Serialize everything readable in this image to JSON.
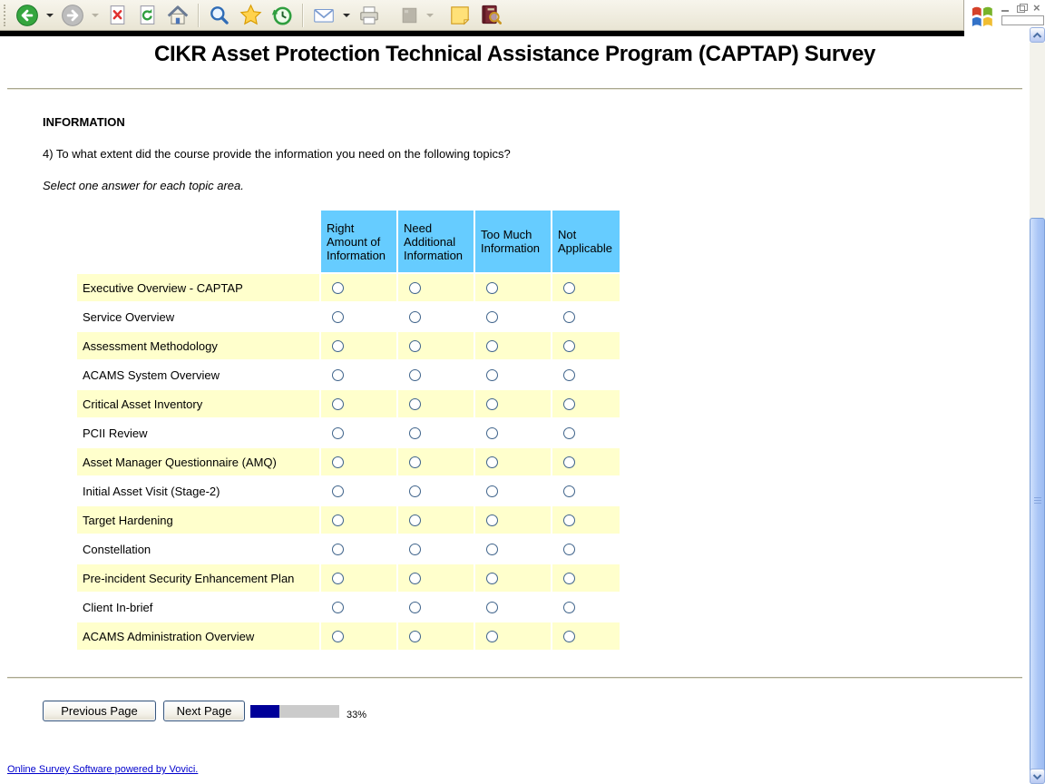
{
  "browser": {
    "toolbar_icons": [
      "back",
      "back-dropdown",
      "forward",
      "forward-dropdown",
      "stop",
      "refresh",
      "home",
      "search",
      "favorites",
      "history",
      "mail",
      "mail-dropdown",
      "print",
      "edit-disabled",
      "edit-dropdown",
      "discuss-note",
      "research"
    ],
    "window_controls": [
      "minimize",
      "restore",
      "close"
    ],
    "close_glyph": "×"
  },
  "survey": {
    "title": "CIKR Asset Protection Technical Assistance Program (CAPTAP) Survey",
    "section_header": "INFORMATION",
    "question": "4) To what extent did the course provide the information you need on the following topics?",
    "instruction": "Select one answer for each topic area.",
    "table": {
      "columns": [
        "Right Amount of Information",
        "Need Additional Information",
        "Too Much Information",
        "Not Applicable"
      ],
      "rows": [
        "Executive Overview - CAPTAP",
        "Service Overview",
        "Assessment Methodology",
        "ACAMS System Overview",
        "Critical Asset Inventory",
        "PCII Review",
        "Asset Manager Questionnaire (AMQ)",
        "Initial Asset Visit (Stage-2)",
        "Target Hardening",
        "Constellation",
        "Pre-incident Security Enhancement Plan",
        "Client In-brief",
        "ACAMS Administration Overview"
      ],
      "selected_answers": "none"
    },
    "buttons": {
      "previous": "Previous Page",
      "next": "Next Page"
    },
    "progress": {
      "percent": 33,
      "label": "33%"
    },
    "footer_link": "Online Survey Software powered by Vovici.",
    "colors": {
      "header_bg": "#66CCFF",
      "row_alt_bg": "#FFFFCC",
      "progress_fill": "#000099",
      "progress_track": "#CBCBCB",
      "link": "#0000CC"
    }
  }
}
